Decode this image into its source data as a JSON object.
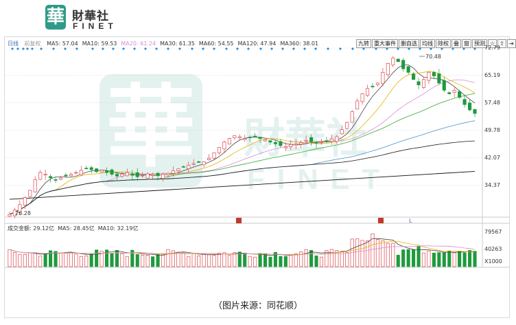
{
  "logo": {
    "mark": "華",
    "name_cn": "財華社",
    "name_en": "FINET"
  },
  "watermark": {
    "mark": "華",
    "name_cn": "財華社",
    "name_en": "FINET"
  },
  "ma_legend": {
    "period": "日线",
    "adjust": "前复权",
    "items": [
      {
        "label": "MA5: 57.04",
        "color": "#333333"
      },
      {
        "label": "MA10: 59.53",
        "color": "#333333"
      },
      {
        "label": "MA20: 61.24",
        "color": "#d98ad9"
      },
      {
        "label": "MA30: 61.35",
        "color": "#333333"
      },
      {
        "label": "MA60: 54.55",
        "color": "#333333"
      },
      {
        "label": "MA120: 47.94",
        "color": "#333333"
      },
      {
        "label": "MA360: 38.01",
        "color": "#333333"
      }
    ]
  },
  "toolbar": {
    "buttons": [
      "九转",
      "重大事件",
      "删自选",
      "均线",
      "除权",
      "叠",
      "窗",
      "预测",
      "☆",
      "⇧",
      "⇥",
      "▾"
    ]
  },
  "price_axis": [
    "72.79",
    "65.19",
    "57.48",
    "49.78",
    "42.07",
    "34.37"
  ],
  "annotations": {
    "high": "70.48",
    "low": "26.28",
    "marker_l": "L"
  },
  "volume_legend": {
    "items": [
      {
        "label": "成交金额: 29.12亿",
        "color": "#333333"
      },
      {
        "label": "MA5: 28.45亿",
        "color": "#333333"
      },
      {
        "label": "MA10: 32.19亿",
        "color": "#333333"
      }
    ]
  },
  "volume_axis": [
    "79567",
    "40263",
    "X1000"
  ],
  "caption": "（图片来源：同花顺）",
  "chart_data": {
    "type": "candlestick",
    "ylim": [
      26.28,
      72.79
    ],
    "y_ticks": [
      72.79,
      65.19,
      57.48,
      49.78,
      42.07,
      34.37
    ],
    "closes": [
      26.3,
      27.5,
      29,
      31,
      33,
      36,
      38,
      37.5,
      36.5,
      35.8,
      36.5,
      37,
      37.5,
      38,
      38.6,
      39.2,
      38.8,
      38.2,
      38.6,
      38,
      37.5,
      37,
      37.5,
      38,
      37.2,
      36.8,
      37.2,
      37.6,
      37.4,
      37.1,
      37.5,
      37.8,
      38.5,
      39,
      39.6,
      40,
      40.5,
      40.8,
      41,
      42,
      43.5,
      45,
      46.5,
      47.5,
      48.3,
      48,
      47.5,
      47.8,
      48.1,
      47.5,
      47.2,
      46.5,
      46,
      45.5,
      45.2,
      45.8,
      46,
      46.3,
      47,
      46.6,
      46.2,
      46.5,
      46.8,
      47.4,
      48,
      50,
      52,
      55,
      58,
      60,
      61.5,
      62,
      63,
      66,
      68.5,
      70,
      69,
      67,
      66,
      64,
      62.5,
      64,
      66,
      65,
      63,
      61,
      60,
      61,
      59,
      57,
      55.5,
      54.5
    ],
    "ma_series": [
      {
        "name": "MA5",
        "color": "#444444"
      },
      {
        "name": "MA10",
        "color": "#e0b300"
      },
      {
        "name": "MA20",
        "color": "#d98ad9"
      },
      {
        "name": "MA30",
        "color": "#33aa33"
      },
      {
        "name": "MA60",
        "color": "#4a90c8"
      },
      {
        "name": "MA120",
        "color": "#1a1a1a"
      }
    ],
    "volume_ylim": [
      0,
      79567
    ],
    "volume_ticks": [
      79567,
      40263
    ],
    "volume_unit": "X1000"
  }
}
